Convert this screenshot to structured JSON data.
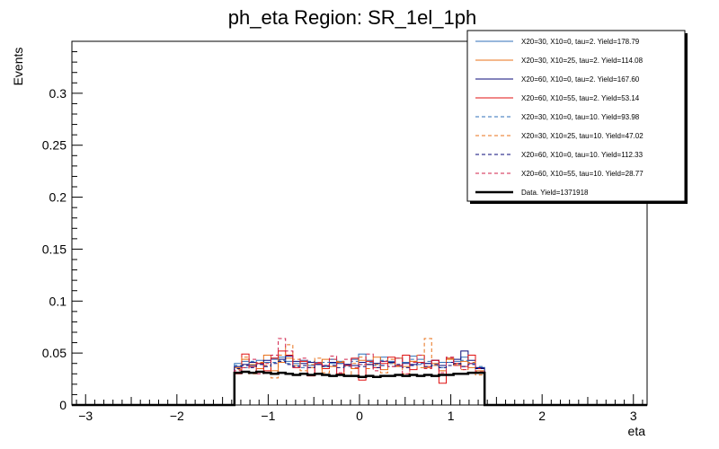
{
  "chart_data": {
    "type": "histogram",
    "title": "ph_eta Region: SR_1el_1ph",
    "xlabel": "eta",
    "ylabel": "Events",
    "xlim": [
      -3.15,
      3.15
    ],
    "ylim": [
      0,
      0.35
    ],
    "x_ticks": [
      -3,
      -2,
      -1,
      0,
      1,
      2,
      3
    ],
    "x_tick_labels": [
      "−3",
      "−2",
      "−1",
      "0",
      "1",
      "2",
      "3"
    ],
    "y_ticks": [
      0,
      0.05,
      0.1,
      0.15,
      0.2,
      0.25,
      0.3
    ],
    "y_tick_labels": [
      "0",
      "0.05",
      "0.1",
      "0.15",
      "0.2",
      "0.25",
      "0.3"
    ],
    "bin_edges": [
      -1.37,
      -1.29,
      -1.21,
      -1.13,
      -1.05,
      -0.97,
      -0.89,
      -0.81,
      -0.73,
      -0.65,
      -0.57,
      -0.49,
      -0.41,
      -0.33,
      -0.25,
      -0.17,
      -0.09,
      -0.01,
      0.07,
      0.15,
      0.23,
      0.31,
      0.39,
      0.47,
      0.55,
      0.63,
      0.71,
      0.79,
      0.87,
      0.95,
      1.03,
      1.11,
      1.19,
      1.27,
      1.37
    ],
    "series": [
      {
        "name": "X20=30, X10=0, tau=2.",
        "legend": "X20=30, X10=0, tau=2. Yield=178.79",
        "color": "#2f6fb8",
        "dashed": false,
        "width": 1,
        "values": [
          0.04,
          0.042,
          0.038,
          0.043,
          0.041,
          0.044,
          0.046,
          0.042,
          0.04,
          0.043,
          0.038,
          0.041,
          0.037,
          0.04,
          0.042,
          0.039,
          0.044,
          0.049,
          0.043,
          0.04,
          0.046,
          0.042,
          0.045,
          0.041,
          0.047,
          0.044,
          0.04,
          0.043,
          0.041,
          0.045,
          0.042,
          0.046,
          0.04,
          0.036
        ]
      },
      {
        "name": "X20=30, X10=25, tau=2.",
        "legend": "X20=30, X10=25, tau=2. Yield=114.08",
        "color": "#e8711a",
        "dashed": false,
        "width": 1,
        "values": [
          0.036,
          0.044,
          0.039,
          0.035,
          0.048,
          0.033,
          0.041,
          0.045,
          0.038,
          0.042,
          0.036,
          0.03,
          0.044,
          0.037,
          0.041,
          0.038,
          0.035,
          0.043,
          0.039,
          0.046,
          0.034,
          0.04,
          0.045,
          0.037,
          0.042,
          0.048,
          0.036,
          0.04,
          0.033,
          0.044,
          0.038,
          0.042,
          0.036,
          0.033
        ]
      },
      {
        "name": "X20=60, X10=0, tau=2.",
        "legend": "X20=60, X10=0, tau=2. Yield=167.60",
        "color": "#0a0a7a",
        "dashed": false,
        "width": 1,
        "values": [
          0.037,
          0.039,
          0.041,
          0.04,
          0.043,
          0.045,
          0.044,
          0.047,
          0.042,
          0.04,
          0.041,
          0.039,
          0.038,
          0.041,
          0.04,
          0.039,
          0.038,
          0.041,
          0.039,
          0.04,
          0.042,
          0.041,
          0.038,
          0.04,
          0.039,
          0.041,
          0.04,
          0.043,
          0.038,
          0.041,
          0.044,
          0.052,
          0.043,
          0.036
        ]
      },
      {
        "name": "X20=60, X10=55, tau=2.",
        "legend": "X20=60, X10=55, tau=2. Yield=53.14",
        "color": "#e01010",
        "dashed": false,
        "width": 1,
        "values": [
          0.03,
          0.049,
          0.037,
          0.04,
          0.033,
          0.045,
          0.052,
          0.048,
          0.036,
          0.042,
          0.028,
          0.04,
          0.035,
          0.044,
          0.03,
          0.038,
          0.045,
          0.024,
          0.042,
          0.036,
          0.04,
          0.046,
          0.038,
          0.048,
          0.034,
          0.041,
          0.037,
          0.043,
          0.021,
          0.045,
          0.04,
          0.037,
          0.048,
          0.035
        ]
      },
      {
        "name": "X20=30, X10=0, tau=10.",
        "legend": "X20=30, X10=0, tau=10. Yield=93.98",
        "color": "#2f6fb8",
        "dashed": true,
        "width": 1,
        "values": [
          0.038,
          0.036,
          0.042,
          0.039,
          0.037,
          0.041,
          0.043,
          0.04,
          0.038,
          0.036,
          0.042,
          0.039,
          0.041,
          0.044,
          0.04,
          0.037,
          0.042,
          0.039,
          0.041,
          0.038,
          0.043,
          0.04,
          0.037,
          0.041,
          0.044,
          0.039,
          0.042,
          0.038,
          0.036,
          0.041,
          0.039,
          0.043,
          0.04,
          0.037
        ]
      },
      {
        "name": "X20=30, X10=25, tau=10.",
        "legend": "X20=30, X10=25, tau=10. Yield=47.02",
        "color": "#e8711a",
        "dashed": true,
        "width": 1,
        "values": [
          0.034,
          0.046,
          0.03,
          0.041,
          0.038,
          0.026,
          0.048,
          0.058,
          0.044,
          0.033,
          0.039,
          0.045,
          0.031,
          0.037,
          0.042,
          0.028,
          0.04,
          0.046,
          0.035,
          0.039,
          0.031,
          0.044,
          0.037,
          0.03,
          0.042,
          0.036,
          0.064,
          0.038,
          0.033,
          0.045,
          0.039,
          0.034,
          0.041,
          0.029
        ]
      },
      {
        "name": "X20=60, X10=0, tau=10.",
        "legend": "X20=60, X10=0, tau=10. Yield=112.33",
        "color": "#0a0a7a",
        "dashed": true,
        "width": 1,
        "values": [
          0.035,
          0.038,
          0.036,
          0.039,
          0.037,
          0.04,
          0.042,
          0.039,
          0.037,
          0.038,
          0.036,
          0.039,
          0.037,
          0.038,
          0.036,
          0.039,
          0.038,
          0.037,
          0.039,
          0.036,
          0.038,
          0.037,
          0.039,
          0.036,
          0.038,
          0.04,
          0.037,
          0.039,
          0.036,
          0.038,
          0.04,
          0.037,
          0.039,
          0.035
        ]
      },
      {
        "name": "X20=60, X10=55, tau=10.",
        "legend": "X20=60, X10=55, tau=10. Yield=28.77",
        "color": "#d0204a",
        "dashed": true,
        "width": 1,
        "values": [
          0.033,
          0.036,
          0.044,
          0.03,
          0.04,
          0.048,
          0.064,
          0.052,
          0.036,
          0.045,
          0.029,
          0.041,
          0.038,
          0.047,
          0.031,
          0.044,
          0.036,
          0.039,
          0.049,
          0.033,
          0.042,
          0.037,
          0.045,
          0.03,
          0.041,
          0.048,
          0.035,
          0.043,
          0.031,
          0.046,
          0.038,
          0.034,
          0.04,
          0.032
        ]
      },
      {
        "name": "Data",
        "legend": "Data. Yield=1371918",
        "color": "#000000",
        "dashed": false,
        "width": 2.5,
        "values": [
          0.031,
          0.032,
          0.031,
          0.032,
          0.031,
          0.03,
          0.031,
          0.03,
          0.029,
          0.03,
          0.029,
          0.03,
          0.029,
          0.028,
          0.029,
          0.028,
          0.028,
          0.027,
          0.028,
          0.027,
          0.028,
          0.028,
          0.029,
          0.028,
          0.029,
          0.028,
          0.029,
          0.028,
          0.029,
          0.029,
          0.03,
          0.03,
          0.031,
          0.031
        ]
      }
    ]
  }
}
